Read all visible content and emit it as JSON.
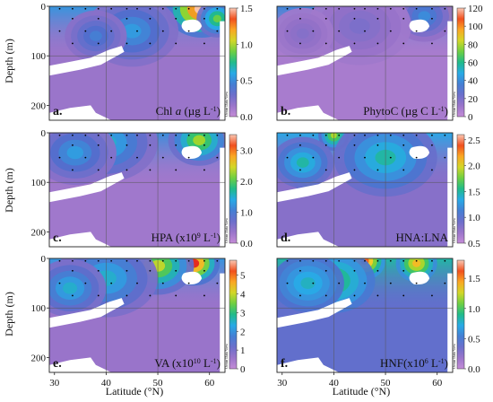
{
  "figure": {
    "y_axis_label": "Depth (m)",
    "x_axis_label": "Latitude (°N)",
    "watermark": "Ocean Data View"
  },
  "chart_data": [
    {
      "type": "heatmap",
      "panel": "a.",
      "title": "Chl a (µg L⁻¹)",
      "title_parts": {
        "pre": "Chl ",
        "italic": "a",
        "mid": " (µg L",
        "sup": "-1",
        "post": ")"
      },
      "xlim": [
        29,
        63
      ],
      "ylim": [
        0,
        230
      ],
      "x_ticks": [],
      "y_ticks": [
        0,
        100,
        200
      ],
      "colorbar": {
        "min": 0.0,
        "max": 1.5,
        "ticks": [
          0.0,
          0.5,
          1.0,
          1.5
        ],
        "labels": [
          "0.0",
          "0.5",
          "1.0",
          "1.5"
        ]
      },
      "hotspots": [
        {
          "lat": 58.5,
          "depth": 5,
          "value": 1.5,
          "r": 7
        },
        {
          "lat": 61.5,
          "depth": 25,
          "value": 0.9,
          "r": 4
        },
        {
          "lat": 45,
          "depth": 50,
          "value": 0.55,
          "r": 9
        },
        {
          "lat": 38,
          "depth": 60,
          "value": 0.45,
          "r": 6
        }
      ],
      "background_value": 0.15
    },
    {
      "type": "heatmap",
      "panel": "b.",
      "title": "PhytoC (µg C L⁻¹)",
      "title_parts": {
        "pre": "PhytoC (µg C L",
        "sup": "-1",
        "post": ")"
      },
      "xlim": [
        29,
        63
      ],
      "ylim": [
        0,
        230
      ],
      "x_ticks": [],
      "y_ticks": [],
      "colorbar": {
        "min": 0,
        "max": 120,
        "ticks": [
          0,
          20,
          40,
          60,
          80,
          100,
          120
        ],
        "labels": [
          "0",
          "20",
          "40",
          "60",
          "80",
          "100",
          "120"
        ]
      },
      "hotspots": [
        {
          "lat": 61,
          "depth": 10,
          "value": 120,
          "r": 4
        },
        {
          "lat": 57.5,
          "depth": 20,
          "value": 40,
          "r": 6
        },
        {
          "lat": 45,
          "depth": 40,
          "value": 20,
          "r": 10
        },
        {
          "lat": 34,
          "depth": 55,
          "value": 18,
          "r": 6
        }
      ],
      "background_value": 8
    },
    {
      "type": "heatmap",
      "panel": "c.",
      "title": "HPA (x10⁹ L⁻¹)",
      "title_parts": {
        "pre": "HPA (x10",
        "sup": "9",
        "mid": " L",
        "sup2": "-1",
        "post": ")"
      },
      "xlim": [
        29,
        63
      ],
      "ylim": [
        0,
        230
      ],
      "x_ticks": [],
      "y_ticks": [
        0,
        100,
        200
      ],
      "colorbar": {
        "min": 0.0,
        "max": 3.5,
        "ticks": [
          0.0,
          1.0,
          2.0,
          3.0
        ],
        "labels": [
          "0.0",
          "1.0",
          "2.0",
          "3.0"
        ]
      },
      "hotspots": [
        {
          "lat": 62,
          "depth": 5,
          "value": 3.4,
          "r": 3
        },
        {
          "lat": 58,
          "depth": 15,
          "value": 2.3,
          "r": 6
        },
        {
          "lat": 40,
          "depth": 20,
          "value": 1.5,
          "r": 10
        },
        {
          "lat": 34,
          "depth": 40,
          "value": 1.3,
          "r": 8
        }
      ],
      "background_value": 0.3
    },
    {
      "type": "heatmap",
      "panel": "d.",
      "title": "HNA:LNA",
      "title_parts": {
        "pre": "HNA:LNA"
      },
      "xlim": [
        29,
        63
      ],
      "ylim": [
        0,
        230
      ],
      "x_ticks": [],
      "y_ticks": [],
      "colorbar": {
        "min": 0.5,
        "max": 2.6,
        "ticks": [
          0.5,
          1.0,
          1.5,
          2.0,
          2.5
        ],
        "labels": [
          "0.5",
          "1.0",
          "1.5",
          "2.0",
          "2.5"
        ]
      },
      "hotspots": [
        {
          "lat": 35,
          "depth": 90,
          "value": 2.0,
          "r": 3
        },
        {
          "lat": 40,
          "depth": 5,
          "value": 1.9,
          "r": 3
        },
        {
          "lat": 50,
          "depth": 50,
          "value": 1.5,
          "r": 10
        },
        {
          "lat": 34,
          "depth": 60,
          "value": 1.5,
          "r": 6
        }
      ],
      "background_value": 0.8
    },
    {
      "type": "heatmap",
      "panel": "e.",
      "title": "VA (x10¹⁰ L⁻¹)",
      "title_parts": {
        "pre": "VA (x10",
        "sup": "10",
        "mid": " L",
        "sup2": "-1",
        "post": ")"
      },
      "xlim": [
        29,
        63
      ],
      "ylim": [
        0,
        230
      ],
      "x_ticks": [
        30,
        40,
        50,
        60
      ],
      "y_ticks": [
        0,
        100,
        200
      ],
      "colorbar": {
        "min": 0,
        "max": 5.8,
        "ticks": [
          0,
          1,
          2,
          3,
          4,
          5
        ],
        "labels": [
          "0",
          "1",
          "2",
          "3",
          "4",
          "5"
        ]
      },
      "hotspots": [
        {
          "lat": 57,
          "depth": 10,
          "value": 5.5,
          "r": 5
        },
        {
          "lat": 50,
          "depth": 15,
          "value": 4.0,
          "r": 7
        },
        {
          "lat": 40,
          "depth": 40,
          "value": 2.5,
          "r": 10
        },
        {
          "lat": 33,
          "depth": 60,
          "value": 2.5,
          "r": 7
        }
      ],
      "background_value": 0.6
    },
    {
      "type": "heatmap",
      "panel": "f.",
      "title": "HNF(x10⁶ L⁻¹)",
      "title_parts": {
        "pre": "HNF(x10",
        "sup": "6",
        "mid": " L",
        "sup2": "-1",
        "post": ")"
      },
      "xlim": [
        29,
        63
      ],
      "ylim": [
        0,
        230
      ],
      "x_ticks": [
        30,
        40,
        50,
        60
      ],
      "y_ticks": [],
      "colorbar": {
        "min": 0.0,
        "max": 1.8,
        "ticks": [
          0.0,
          0.5,
          1.0,
          1.5
        ],
        "labels": [
          "0.0",
          "0.5",
          "1.0",
          "1.5"
        ]
      },
      "hotspots": [
        {
          "lat": 43,
          "depth": 40,
          "value": 1.75,
          "r": 4
        },
        {
          "lat": 46,
          "depth": 5,
          "value": 1.6,
          "r": 4
        },
        {
          "lat": 56,
          "depth": 10,
          "value": 1.4,
          "r": 4
        },
        {
          "lat": 40,
          "depth": 45,
          "value": 1.0,
          "r": 8
        },
        {
          "lat": 35,
          "depth": 50,
          "value": 0.8,
          "r": 7
        }
      ],
      "background_value": 0.4
    }
  ]
}
